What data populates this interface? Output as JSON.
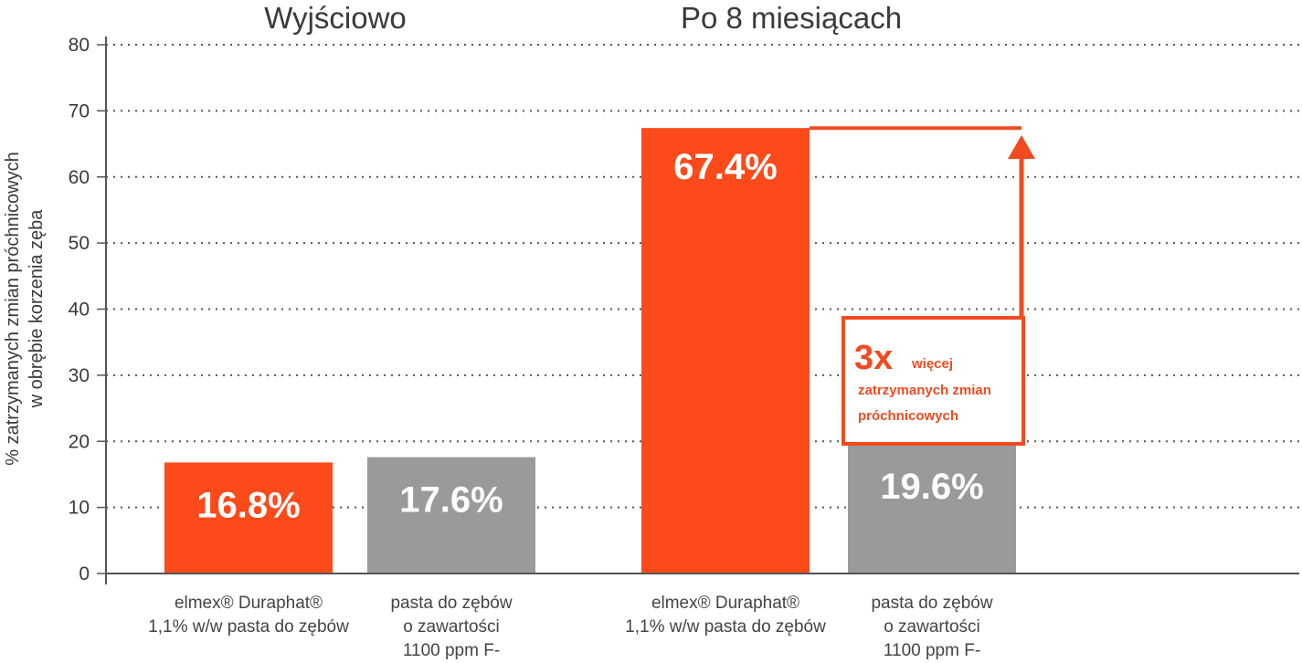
{
  "chart_data": {
    "type": "bar",
    "ylabel_lines": [
      "% zatrzymanych zmian próchnicowych",
      "w obrębie korzenia zęba"
    ],
    "ylim": [
      0,
      80
    ],
    "yticks": [
      0,
      10,
      20,
      30,
      40,
      50,
      60,
      70,
      80
    ],
    "grid": true,
    "groups": [
      {
        "title": "Wyjściowo",
        "bars": [
          {
            "value": 16.8,
            "label": "16.8%",
            "color": "#fc4a1a",
            "category_lines": [
              "elmex® Duraphat®",
              "1,1% w/w pasta do zębów"
            ]
          },
          {
            "value": 17.6,
            "label": "17.6%",
            "color": "#9a9a9a",
            "category_lines": [
              "pasta do zębów",
              "o zawartości",
              "1100 ppm F-"
            ]
          }
        ]
      },
      {
        "title": "Po 8 miesiącach",
        "bars": [
          {
            "value": 67.4,
            "label": "67.4%",
            "color": "#fc4a1a",
            "category_lines": [
              "elmex® Duraphat®",
              "1,1% w/w pasta do zębów"
            ]
          },
          {
            "value": 19.6,
            "label": "19.6%",
            "color": "#9a9a9a",
            "category_lines": [
              "pasta do zębów",
              "o zawartości",
              "1100 ppm F-"
            ]
          }
        ]
      }
    ],
    "annotation": {
      "big": "3x",
      "line1": "więcej",
      "line2": "zatrzymanych zmian",
      "line3": "próchnicowych",
      "color": "#f24a20"
    }
  }
}
